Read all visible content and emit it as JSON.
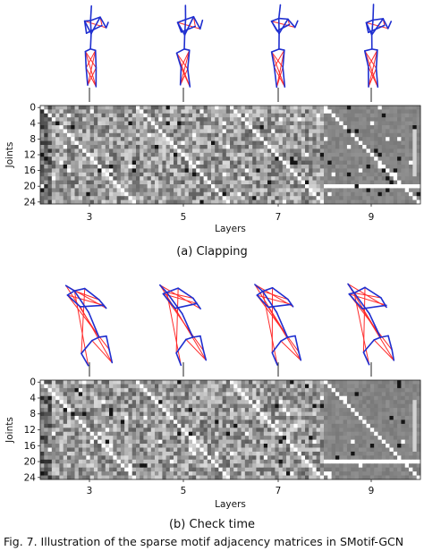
{
  "figure": {
    "panels": [
      {
        "id": "clapping",
        "caption": "(a) Clapping",
        "y_axis_label": "Joints",
        "x_axis_label": "Layers",
        "y_ticks": [
          "0",
          "4",
          "8",
          "12",
          "16",
          "20",
          "24"
        ],
        "x_ticks": [
          "3",
          "5",
          "7",
          "9"
        ],
        "skeletons": [
          "layer-3-skeleton",
          "layer-5-skeleton",
          "layer-7-skeleton",
          "layer-9-skeleton"
        ],
        "skeleton_pose": "upright",
        "seed": 11,
        "bright_row": 20
      },
      {
        "id": "check-time",
        "caption": "(b) Check time",
        "y_axis_label": "Joints",
        "x_axis_label": "Layers",
        "y_ticks": [
          "0",
          "4",
          "8",
          "12",
          "16",
          "20",
          "24"
        ],
        "x_ticks": [
          "3",
          "5",
          "7",
          "9"
        ],
        "skeletons": [
          "layer-3-skeleton",
          "layer-5-skeleton",
          "layer-7-skeleton",
          "layer-9-skeleton"
        ],
        "skeleton_pose": "bent",
        "seed": 29,
        "bright_row": 20
      }
    ],
    "colors": {
      "bone_blue": "#1f2fd0",
      "bone_red": "#ff2a2a",
      "heatmap_dark": "#111111",
      "heatmap_light": "#ffffff"
    },
    "footer_text": "Fig. 7. Illustration of the sparse motif adjacency matrices in SMotif-GCN"
  }
}
